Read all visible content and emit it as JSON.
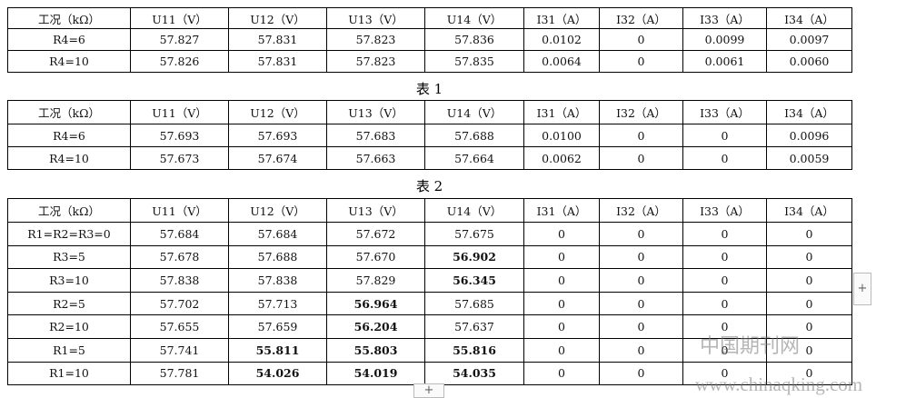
{
  "tables": [
    {
      "header": [
        "工况（kΩ）",
        "U11（V）",
        "U12（V）",
        "U13（V）",
        "U14（V）",
        "I31（A）",
        "I32（A）",
        "I33（A）",
        "I34（A）"
      ],
      "rows": [
        [
          "R4=6",
          "57.827",
          "57.831",
          "57.823",
          "57.836",
          "0.0102",
          "0",
          "0.0099",
          "0.0097"
        ],
        [
          "R4=10",
          "57.826",
          "57.831",
          "57.823",
          "57.835",
          "0.0064",
          "0",
          "0.0061",
          "0.0060"
        ]
      ]
    },
    {
      "header": [
        "工况（kΩ）",
        "U11（V）",
        "U12（V）",
        "U13（V）",
        "U14（V）",
        "I31（A）",
        "I32（A）",
        "I33（A）",
        "I34（A）"
      ],
      "rows": [
        [
          "R4=6",
          "57.693",
          "57.693",
          "57.683",
          "57.688",
          "0.0100",
          "0",
          "0",
          "0.0096"
        ],
        [
          "R4=10",
          "57.673",
          "57.674",
          "57.663",
          "57.664",
          "0.0062",
          "0",
          "0",
          "0.0059"
        ]
      ]
    },
    {
      "header": [
        "工况（kΩ）",
        "U11（V）",
        "U12（V）",
        "U13（V）",
        "U14（V）",
        "I31（A）",
        "I32（A）",
        "I33（A）",
        "I34（A）"
      ],
      "rows": [
        [
          "R1=R2=R3=0",
          "57.684",
          "57.684",
          "57.672",
          "57.675",
          "0",
          "0",
          "0",
          "0"
        ],
        [
          "R3=5",
          "57.678",
          "57.688",
          "57.670",
          "56.902",
          "0",
          "0",
          "0",
          "0"
        ],
        [
          "R3=10",
          "57.838",
          "57.838",
          "57.829",
          "56.345",
          "0",
          "0",
          "0",
          "0"
        ],
        [
          "R2=5",
          "57.702",
          "57.713",
          "56.964",
          "57.685",
          "0",
          "0",
          "0",
          "0"
        ],
        [
          "R2=10",
          "57.655",
          "57.659",
          "56.204",
          "57.637",
          "0",
          "0",
          "0",
          "0"
        ],
        [
          "R1=5",
          "57.741",
          "55.811",
          "55.803",
          "55.816",
          "0",
          "0",
          "0",
          "0"
        ],
        [
          "R1=10",
          "57.781",
          "54.026",
          "54.019",
          "54.035",
          "0",
          "0",
          "0",
          "0"
        ]
      ]
    }
  ],
  "captions": [
    "表 1",
    "表 2"
  ],
  "watermark": {
    "name": "中国期刊网",
    "url": "www.chinaqking.com"
  }
}
